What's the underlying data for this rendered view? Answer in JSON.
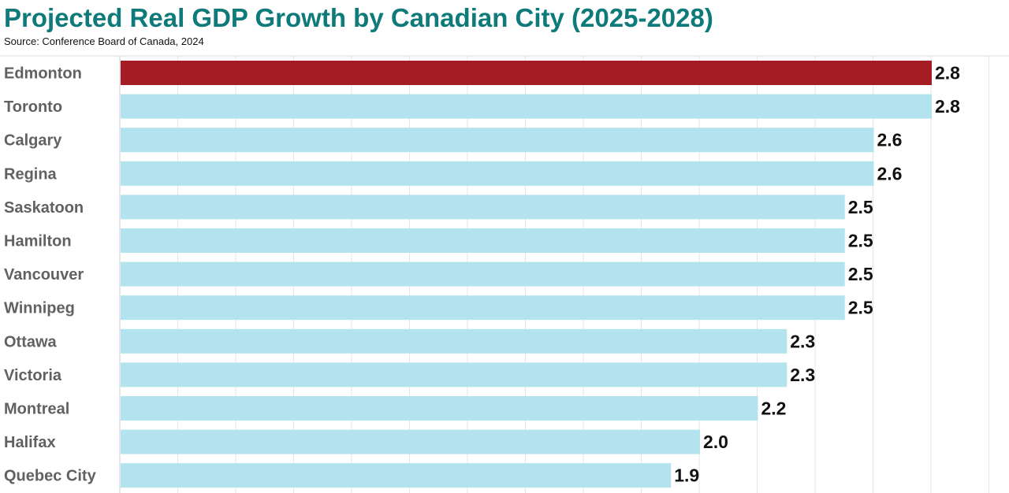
{
  "header": {
    "title": "Projected Real GDP Growth by Canadian City (2025-2028)",
    "source": "Source: Conference Board of Canada, 2024"
  },
  "colors": {
    "highlight": "#a51c24",
    "bar": "#b2e3ef",
    "title": "#0f7a7a",
    "grid": "#e6e6e6"
  },
  "chart_data": {
    "type": "bar",
    "orientation": "horizontal",
    "title": "Projected Real GDP Growth by Canadian City (2025-2028)",
    "categories": [
      "Edmonton",
      "Toronto",
      "Calgary",
      "Regina",
      "Saskatoon",
      "Hamilton",
      "Vancouver",
      "Winnipeg",
      "Ottawa",
      "Victoria",
      "Montreal",
      "Halifax",
      "Quebec City"
    ],
    "values": [
      2.8,
      2.8,
      2.6,
      2.6,
      2.5,
      2.5,
      2.5,
      2.5,
      2.3,
      2.3,
      2.2,
      2.0,
      1.9
    ],
    "value_labels": [
      "2.8",
      "2.8",
      "2.6",
      "2.6",
      "2.5",
      "2.5",
      "2.5",
      "2.5",
      "2.3",
      "2.3",
      "2.2",
      "2.0",
      "1.9"
    ],
    "highlight_category": "Edmonton",
    "xlim": [
      0,
      3.0
    ],
    "grid": true,
    "legend": "none"
  }
}
